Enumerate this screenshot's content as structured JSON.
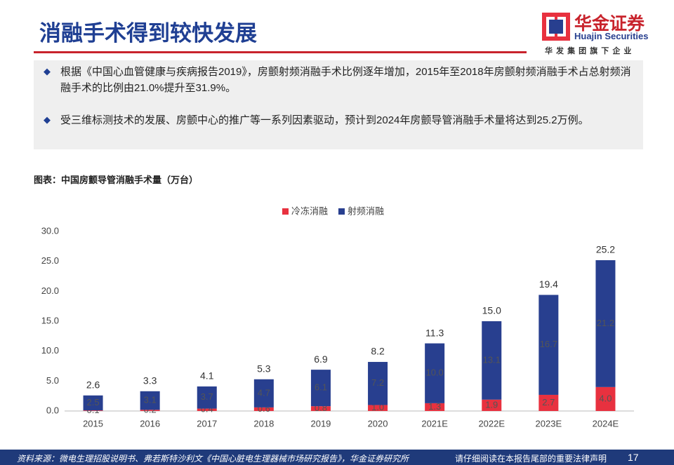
{
  "header": {
    "title": "消融手术得到较快发展",
    "logo": {
      "name": "华金证券",
      "english": "Huajin Securities",
      "tagline": "华 发 集 团 旗 下 企 业"
    }
  },
  "bullets": [
    "根据《中国心血管健康与疾病报告2019》，房颤射频消融手术比例逐年增加，2015年至2018年房颤射频消融手术占总射频消融手术的比例由21.0%提升至31.9%。",
    "受三维标测技术的发展、房颤中心的推广等一系列因素驱动，预计到2024年房颤导管消融手术量将达到25.2万例。"
  ],
  "chart_data": {
    "type": "stacked-bar",
    "title": "图表：中国房颤导管消融手术量（万台）",
    "categories": [
      "2015",
      "2016",
      "2017",
      "2018",
      "2019",
      "2020",
      "2021E",
      "2022E",
      "2023E",
      "2024E"
    ],
    "series": [
      {
        "name": "冷冻消融",
        "color": "#e8313f",
        "values": [
          0.1,
          0.2,
          0.4,
          0.6,
          0.8,
          1.0,
          1.3,
          1.9,
          2.7,
          4.0
        ],
        "value_labels": [
          "0.1",
          "0.2",
          "0.4",
          "0.6",
          "0.8",
          "1.0",
          "1.3",
          "1.9",
          "2.7",
          "4.0"
        ]
      },
      {
        "name": "射频消融",
        "color": "#283f8f",
        "values": [
          2.5,
          3.1,
          3.7,
          4.7,
          6.1,
          7.2,
          10.0,
          13.1,
          16.7,
          21.2
        ],
        "value_labels": [
          "2.5",
          "3.1",
          "3.7",
          "4.7",
          "6.1",
          "7.2",
          "10.0",
          "13.1",
          "16.7",
          "21.2"
        ]
      }
    ],
    "totals": {
      "values": [
        2.6,
        3.3,
        4.1,
        5.3,
        6.9,
        8.2,
        11.3,
        15.0,
        19.4,
        25.2
      ],
      "value_labels": [
        "2.6",
        "3.3",
        "4.1",
        "5.3",
        "6.9",
        "8.2",
        "11.3",
        "15.0",
        "19.4",
        "25.2"
      ]
    },
    "ylim": [
      0,
      30
    ],
    "yticks": [
      {
        "value": 0,
        "label": "0.0"
      },
      {
        "value": 5,
        "label": "5.0"
      },
      {
        "value": 10,
        "label": "10.0"
      },
      {
        "value": 15,
        "label": "15.0"
      },
      {
        "value": 20,
        "label": "20.0"
      },
      {
        "value": 25,
        "label": "25.0"
      },
      {
        "value": 30,
        "label": "30.0"
      }
    ],
    "legend": "top"
  },
  "footer": {
    "source": "资料来源：微电生理招股说明书、弗若斯特沙利文《中国心脏电生理器械市场研究报告》，华金证券研究所",
    "disclaimer": "请仔细阅读在本报告尾部的重要法律声明",
    "page": 17
  }
}
